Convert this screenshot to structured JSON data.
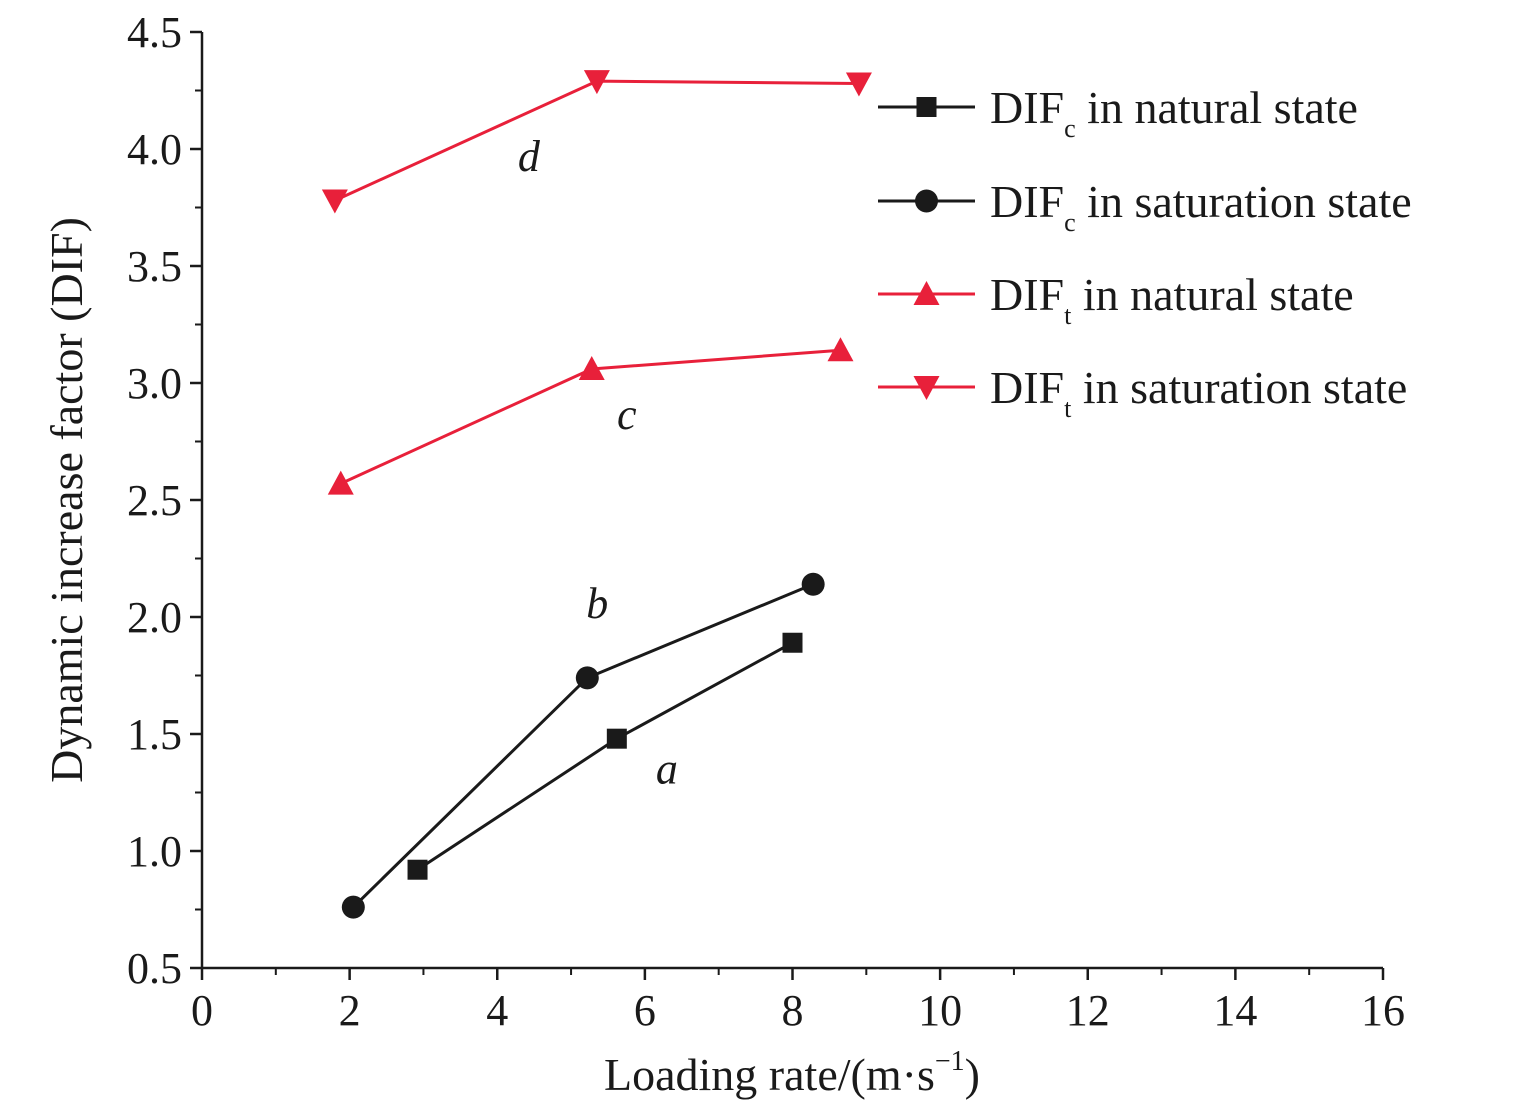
{
  "chart_data": {
    "type": "line",
    "title": "",
    "xlabel": "Loading rate/(m·s",
    "xlabel_sup": "−1",
    "xlabel_close": ")",
    "ylabel": "Dynamic increase factor (DIF)",
    "xlim": [
      0,
      16
    ],
    "ylim": [
      0.5,
      4.5
    ],
    "x_ticks": [
      "0",
      "2",
      "4",
      "6",
      "8",
      "10",
      "12",
      "14",
      "16"
    ],
    "y_ticks": [
      "0.5",
      "1.0",
      "1.5",
      "2.0",
      "2.5",
      "3.0",
      "3.5",
      "4.0",
      "4.5"
    ],
    "grid": false,
    "legend_position": "top-right",
    "series": [
      {
        "name": "DIFc in natural state",
        "legend_main": "DIF",
        "legend_sub": "c",
        "legend_rest": " in natural state",
        "color": "#1a1a1a",
        "marker": "square",
        "annotation": "a",
        "x": [
          2.92,
          5.62,
          8.0
        ],
        "y": [
          0.92,
          1.48,
          1.89
        ]
      },
      {
        "name": "DIFc in saturation state",
        "legend_main": "DIF",
        "legend_sub": "c",
        "legend_rest": " in saturation state",
        "color": "#1a1a1a",
        "marker": "circle",
        "annotation": "b",
        "x": [
          2.05,
          5.22,
          8.28
        ],
        "y": [
          0.76,
          1.74,
          2.14
        ]
      },
      {
        "name": "DIFt in natural state",
        "legend_main": "DIF",
        "legend_sub": "t",
        "legend_rest": " in natural state",
        "color": "#e8203a",
        "marker": "triangle-up",
        "annotation": "c",
        "x": [
          1.88,
          5.28,
          8.65
        ],
        "y": [
          2.57,
          3.06,
          3.14
        ]
      },
      {
        "name": "DIFt in saturation state",
        "legend_main": "DIF",
        "legend_sub": "t",
        "legend_rest": " in saturation state",
        "color": "#e8203a",
        "marker": "triangle-down",
        "annotation": "d",
        "x": [
          1.8,
          5.35,
          8.9
        ],
        "y": [
          3.78,
          4.29,
          4.28
        ]
      }
    ]
  }
}
